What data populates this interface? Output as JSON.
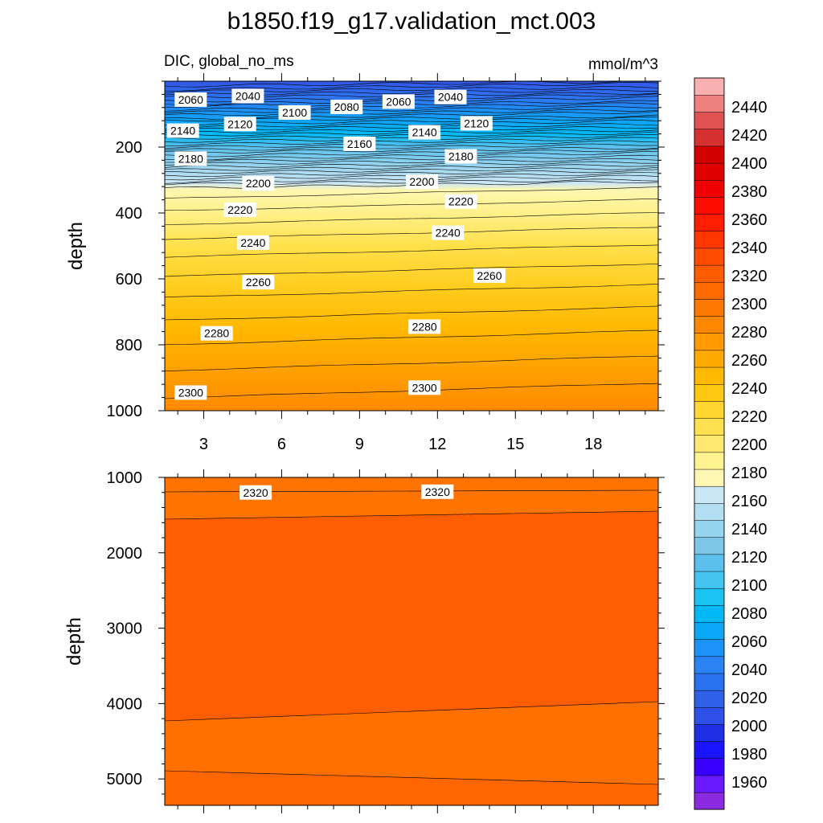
{
  "chart_data": {
    "type": "contour",
    "title": "b1850.f19_g17.validation_mct.003",
    "subtitle_left": "DIC, global_no_ms",
    "subtitle_right": "mmol/m^3",
    "ylabel": "depth",
    "xticks": [
      3,
      6,
      9,
      12,
      15,
      18
    ],
    "xlim": [
      1.5,
      20.5
    ],
    "colorbar": {
      "levels": [
        1960,
        1980,
        2000,
        2020,
        2040,
        2060,
        2080,
        2100,
        2120,
        2140,
        2160,
        2180,
        2200,
        2220,
        2240,
        2260,
        2280,
        2300,
        2320,
        2340,
        2360,
        2380,
        2400,
        2420,
        2440
      ],
      "tick_labels": [
        "1960",
        "1980",
        "2000",
        "2020",
        "2040",
        "2060",
        "2080",
        "2100",
        "2120",
        "2140",
        "2160",
        "2180",
        "2200",
        "2220",
        "2240",
        "2260",
        "2280",
        "2300",
        "2320",
        "2340",
        "2360",
        "2380",
        "2400",
        "2420",
        "2440"
      ],
      "colors": [
        "#8a2be2",
        "#6a1aff",
        "#3a00ff",
        "#1a14ff",
        "#1f2fe6",
        "#2f50e8",
        "#3060e8",
        "#2a72ef",
        "#2a82f5",
        "#1a92f8",
        "#0aa8f7",
        "#00b8f5",
        "#1ac4f2",
        "#44c4f0",
        "#5cc0ec",
        "#7cc7e8",
        "#96d3ed",
        "#b4dff2",
        "#cbe6f4",
        "#fff7b4",
        "#fff290",
        "#ffe970",
        "#ffe050",
        "#ffd530",
        "#ffc810",
        "#ffba00",
        "#ffaa00",
        "#ff9a00",
        "#ff8800",
        "#ff7800",
        "#ff6a00",
        "#ff5c00",
        "#ff4c00",
        "#ff3600",
        "#ff1e00",
        "#ff0c00",
        "#f00000",
        "#e00000",
        "#d20000",
        "#d63030",
        "#e05252",
        "#ee8080",
        "#f8b0b0"
      ]
    },
    "upper_panel": {
      "ylim": [
        0,
        1000
      ],
      "yticks": [
        200,
        400,
        600,
        800,
        1000
      ],
      "contour_labels": [
        {
          "text": "2060",
          "x": 2.5,
          "y": 56
        },
        {
          "text": "2040",
          "x": 4.7,
          "y": 45
        },
        {
          "text": "2100",
          "x": 6.5,
          "y": 95
        },
        {
          "text": "2080",
          "x": 8.5,
          "y": 78
        },
        {
          "text": "2060",
          "x": 10.5,
          "y": 62
        },
        {
          "text": "2040",
          "x": 12.5,
          "y": 48
        },
        {
          "text": "2140",
          "x": 2.2,
          "y": 150
        },
        {
          "text": "2120",
          "x": 4.4,
          "y": 130
        },
        {
          "text": "2160",
          "x": 9.0,
          "y": 190
        },
        {
          "text": "2140",
          "x": 11.5,
          "y": 155
        },
        {
          "text": "2120",
          "x": 13.5,
          "y": 128
        },
        {
          "text": "2180",
          "x": 2.5,
          "y": 235
        },
        {
          "text": "2180",
          "x": 12.9,
          "y": 228
        },
        {
          "text": "2200",
          "x": 5.1,
          "y": 310
        },
        {
          "text": "2200",
          "x": 11.4,
          "y": 305
        },
        {
          "text": "2220",
          "x": 4.4,
          "y": 390
        },
        {
          "text": "2220",
          "x": 12.9,
          "y": 365
        },
        {
          "text": "2240",
          "x": 4.9,
          "y": 490
        },
        {
          "text": "2240",
          "x": 12.4,
          "y": 460
        },
        {
          "text": "2260",
          "x": 5.1,
          "y": 610
        },
        {
          "text": "2260",
          "x": 14.0,
          "y": 590
        },
        {
          "text": "2280",
          "x": 3.5,
          "y": 765
        },
        {
          "text": "2280",
          "x": 11.5,
          "y": 745
        },
        {
          "text": "2300",
          "x": 2.5,
          "y": 945
        },
        {
          "text": "2300",
          "x": 11.5,
          "y": 930
        }
      ]
    },
    "lower_panel": {
      "ylim": [
        1000,
        5350
      ],
      "yticks": [
        1000,
        2000,
        3000,
        4000,
        5000
      ],
      "contour_labels": [
        {
          "text": "2320",
          "x": 5.0,
          "y": 1200
        },
        {
          "text": "2320",
          "x": 12.0,
          "y": 1190
        }
      ]
    }
  }
}
